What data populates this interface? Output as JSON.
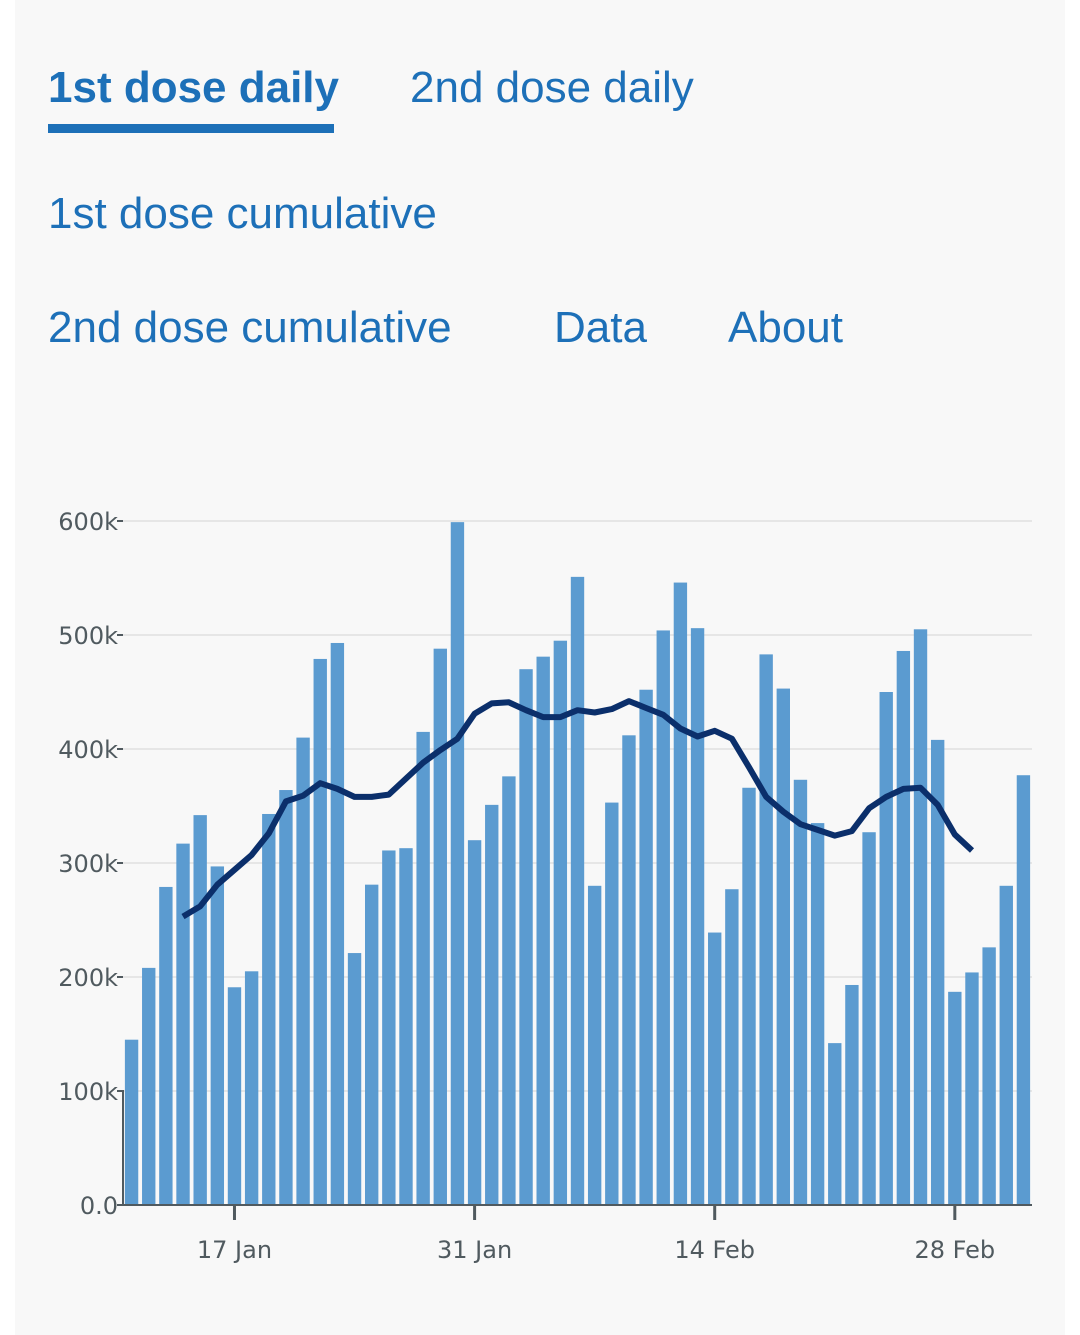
{
  "tabs": [
    {
      "label": "1st dose daily",
      "active": true
    },
    {
      "label": "2nd dose daily",
      "active": false
    },
    {
      "label": "1st dose cumulative",
      "active": false
    },
    {
      "label": "2nd dose cumulative",
      "active": false
    },
    {
      "label": "Data",
      "active": false
    },
    {
      "label": "About",
      "active": false
    }
  ],
  "colors": {
    "link": "#1d70b8",
    "bar": "#5b9bd0",
    "line": "#0b2f6b",
    "grid": "#e6e6e6",
    "axis": "#505a5f"
  },
  "chart_data": {
    "type": "bar",
    "title": "",
    "xlabel": "",
    "ylabel": "",
    "ylim": [
      0,
      600000
    ],
    "yticks": [
      0,
      100000,
      200000,
      300000,
      400000,
      500000,
      600000
    ],
    "ytick_labels": [
      "0.0",
      "100k",
      "200k",
      "300k",
      "400k",
      "500k",
      "600k"
    ],
    "xtick_labels": [
      "17 Jan",
      "31 Jan",
      "14 Feb",
      "28 Feb"
    ],
    "xtick_categories": [
      "17 Jan",
      "31 Jan",
      "14 Feb",
      "28 Feb"
    ],
    "grid": true,
    "categories": [
      "11 Jan",
      "12 Jan",
      "13 Jan",
      "14 Jan",
      "15 Jan",
      "16 Jan",
      "17 Jan",
      "18 Jan",
      "19 Jan",
      "20 Jan",
      "21 Jan",
      "22 Jan",
      "23 Jan",
      "24 Jan",
      "25 Jan",
      "26 Jan",
      "27 Jan",
      "28 Jan",
      "29 Jan",
      "30 Jan",
      "31 Jan",
      "1 Feb",
      "2 Feb",
      "3 Feb",
      "4 Feb",
      "5 Feb",
      "6 Feb",
      "7 Feb",
      "8 Feb",
      "9 Feb",
      "10 Feb",
      "11 Feb",
      "12 Feb",
      "13 Feb",
      "14 Feb",
      "15 Feb",
      "16 Feb",
      "17 Feb",
      "18 Feb",
      "19 Feb",
      "20 Feb",
      "21 Feb",
      "22 Feb",
      "23 Feb",
      "24 Feb",
      "25 Feb",
      "26 Feb",
      "27 Feb",
      "28 Feb",
      "1 Mar",
      "2 Mar",
      "3 Mar",
      "4 Mar"
    ],
    "series": [
      {
        "type": "bar",
        "values": [
          145000,
          208000,
          279000,
          317000,
          342000,
          297000,
          191000,
          205000,
          343000,
          364000,
          410000,
          479000,
          493000,
          221000,
          281000,
          311000,
          313000,
          415000,
          488000,
          599000,
          320000,
          351000,
          376000,
          470000,
          481000,
          495000,
          551000,
          280000,
          353000,
          412000,
          452000,
          504000,
          546000,
          506000,
          239000,
          277000,
          366000,
          483000,
          453000,
          373000,
          335000,
          142000,
          193000,
          327000,
          450000,
          486000,
          505000,
          408000,
          187000,
          204000,
          226000,
          280000,
          377000
        ]
      },
      {
        "type": "line",
        "values": [
          null,
          null,
          null,
          253000,
          262000,
          281000,
          294000,
          307000,
          326000,
          354000,
          359000,
          370000,
          365000,
          358000,
          358000,
          360000,
          374000,
          388000,
          399000,
          409000,
          431000,
          440000,
          441000,
          434000,
          428000,
          428000,
          434000,
          432000,
          435000,
          442000,
          436000,
          430000,
          418000,
          411000,
          416000,
          409000,
          384000,
          358000,
          345000,
          334000,
          329000,
          324000,
          328000,
          348000,
          358000,
          365000,
          366000,
          351000,
          325000,
          311000,
          null,
          null,
          null
        ]
      }
    ]
  }
}
